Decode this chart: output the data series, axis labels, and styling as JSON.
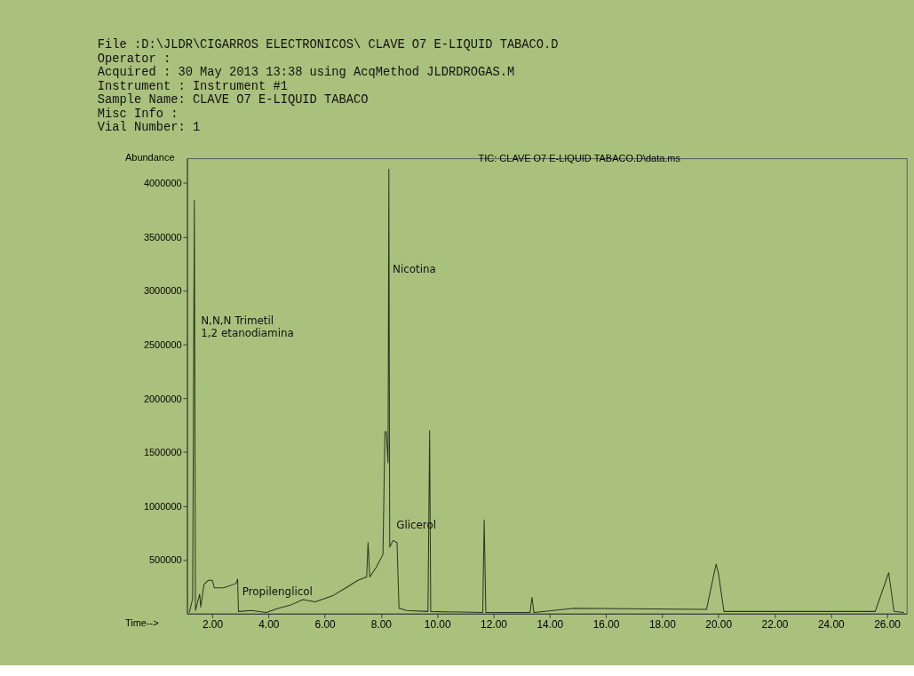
{
  "chart_data": {
    "type": "line",
    "title": "TIC:  CLAVE O7 E-LIQUID TABACO.D\\data.ms",
    "xlabel": "Time-->",
    "ylabel": "Abundance",
    "annotations": [
      "File        :D:\\JLDR\\CIGARROS ELECTRONICOS\\  CLAVE O7 E-LIQUID TABACO.D",
      "Operator    :",
      "Acquired    : 30 May 2013  13:38     using AcqMethod JLDRDROGAS.M",
      "Instrument :     Instrument #1",
      "Sample Name:    CLAVE O7 E-LIQUID TABACO",
      "Misc Info  :",
      "Vial Number: 1",
      {
        "text": "N,N,N Trimetil\n1,2 etanodiamina",
        "x": 1.45,
        "y": 2720000
      },
      {
        "text": "Nicotina",
        "x": 8.27,
        "y": 3200000
      },
      {
        "text": "Glicerol",
        "x": 8.4,
        "y": 820000
      },
      {
        "text": "Propilenglicol",
        "x": 2.92,
        "y": 200000
      }
    ],
    "x": [
      1.18,
      1.3,
      1.36,
      1.4,
      1.55,
      1.59,
      1.7,
      1.86,
      2.0,
      2.07,
      2.4,
      2.84,
      2.9,
      2.93,
      3.38,
      3.92,
      4.35,
      4.79,
      5.22,
      5.66,
      6.31,
      6.75,
      7.18,
      7.49,
      7.54,
      7.6,
      7.83,
      8.07,
      8.14,
      8.19,
      8.25,
      8.28,
      8.31,
      8.43,
      8.57,
      8.64,
      8.91,
      9.67,
      9.73,
      9.77,
      11.62,
      11.67,
      11.73,
      13.3,
      13.37,
      13.44,
      14.88,
      19.58,
      19.92,
      20.0,
      20.2,
      25.58,
      26.06,
      26.25,
      26.6
    ],
    "series": [
      {
        "color": "#2b3522",
        "values": [
          10000,
          140000,
          3840000,
          30000,
          180000,
          60000,
          270000,
          310000,
          310000,
          240000,
          240000,
          280000,
          320000,
          20000,
          30000,
          10000,
          50000,
          80000,
          130000,
          110000,
          170000,
          240000,
          310000,
          340000,
          660000,
          340000,
          430000,
          550000,
          1690000,
          1690000,
          1400000,
          4130000,
          620000,
          680000,
          660000,
          50000,
          30000,
          20000,
          1700000,
          20000,
          10000,
          870000,
          10000,
          10000,
          150000,
          10000,
          50000,
          40000,
          460000,
          380000,
          20000,
          20000,
          380000,
          20000,
          10000
        ]
      }
    ],
    "xlim": [
      1.1,
      26.7
    ],
    "ylim": [
      0,
      4230000
    ],
    "xticks": [
      {
        "value": 2,
        "label": "2.00"
      },
      {
        "value": 4,
        "label": "4.00"
      },
      {
        "value": 6,
        "label": "6.00"
      },
      {
        "value": 8,
        "label": "8.00"
      },
      {
        "value": 10,
        "label": "10.00"
      },
      {
        "value": 12,
        "label": "12.00"
      },
      {
        "value": 14,
        "label": "14.00"
      },
      {
        "value": 16,
        "label": "16.00"
      },
      {
        "value": 18,
        "label": "18.00"
      },
      {
        "value": 20,
        "label": "20.00"
      },
      {
        "value": 22,
        "label": "22.00"
      },
      {
        "value": 24,
        "label": "24.00"
      },
      {
        "value": 26,
        "label": "26.00"
      }
    ],
    "yticks": [
      500000,
      1000000,
      1500000,
      2000000,
      2500000,
      3000000,
      3500000,
      4000000
    ],
    "grid": false,
    "marker": "none",
    "line_style": "solid"
  }
}
